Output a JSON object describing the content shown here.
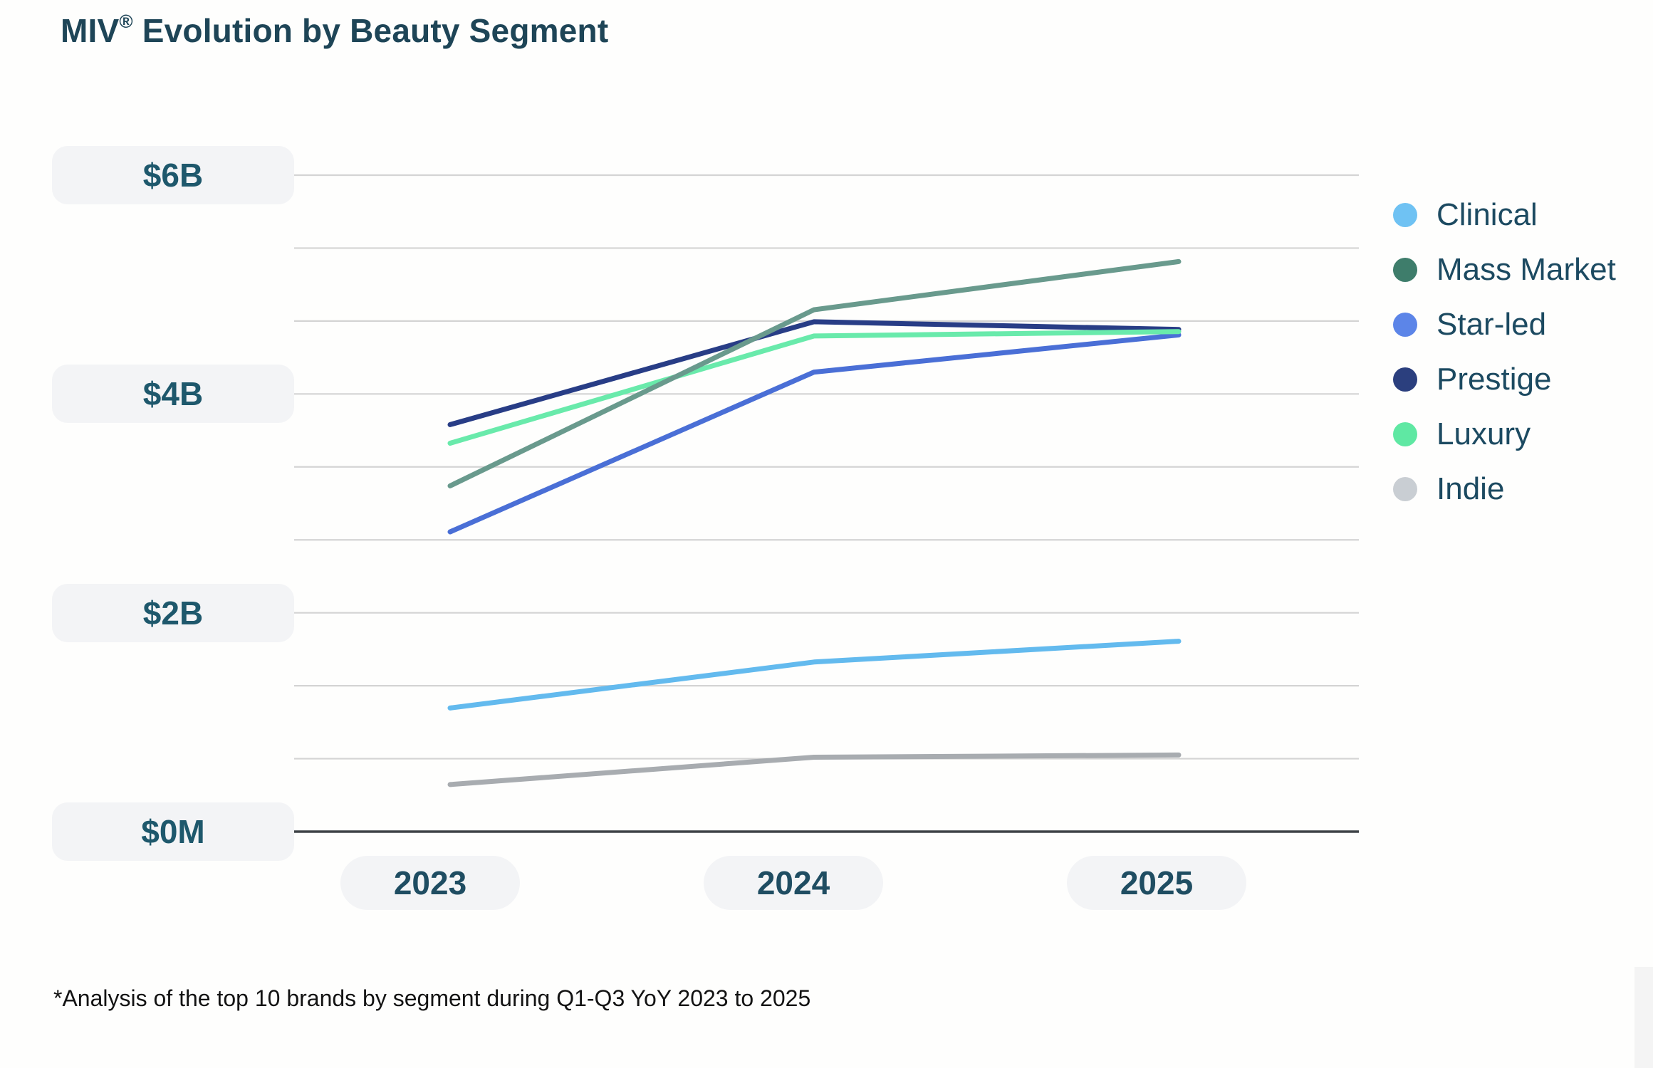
{
  "title": {
    "brand": "MIV",
    "registered": "®",
    "rest": " Evolution by Beauty Segment"
  },
  "footnote": "*Analysis of the top 10 brands by segment during Q1-Q3 YoY 2023 to 2025",
  "chart": {
    "y_ticks": [
      {
        "label": "$6B",
        "value": 6
      },
      {
        "label": "$4B",
        "value": 4
      },
      {
        "label": "$2B",
        "value": 2
      },
      {
        "label": "$0M",
        "value": 0
      }
    ],
    "x_ticks": [
      "2023",
      "2024",
      "2025"
    ]
  },
  "chart_data": {
    "type": "line",
    "title": "MIV® Evolution by Beauty Segment",
    "x": [
      "2023",
      "2024",
      "2025"
    ],
    "series": [
      {
        "name": "Clinical",
        "dot_color": "#6fc2f3",
        "line_color": "#63baee",
        "values": [
          1.13,
          1.55,
          1.74
        ]
      },
      {
        "name": "Mass Market",
        "dot_color": "#3e7d6b",
        "line_color": "#699a8d",
        "values": [
          3.16,
          4.77,
          5.21
        ]
      },
      {
        "name": "Star-led",
        "dot_color": "#5c85e8",
        "line_color": "#4a6fd6",
        "values": [
          2.74,
          4.2,
          4.54
        ]
      },
      {
        "name": "Prestige",
        "dot_color": "#2b3f7e",
        "line_color": "#283d86",
        "values": [
          3.72,
          4.66,
          4.59
        ]
      },
      {
        "name": "Luxury",
        "dot_color": "#5fe8a3",
        "line_color": "#69eaab",
        "values": [
          3.55,
          4.53,
          4.57
        ]
      },
      {
        "name": "Indie",
        "dot_color": "#c9ced3",
        "line_color": "#a8acb0",
        "values": [
          0.43,
          0.68,
          0.7
        ]
      }
    ],
    "ylim": [
      0,
      6
    ],
    "y_tick_labels": [
      "$6B",
      "$4B",
      "$2B",
      "$0M"
    ],
    "xlabel": "",
    "ylabel": "",
    "gridlines": {
      "count": 10,
      "labeled_every": 3,
      "orientation": "horizontal"
    },
    "legend_position": "right"
  },
  "styles": {
    "grid_color": "#d4d4d4",
    "axis_color": "#3e4347",
    "pill_bg": "#f3f4f6",
    "title_color": "#1e4557",
    "tick_text_color": "#1e586c"
  }
}
